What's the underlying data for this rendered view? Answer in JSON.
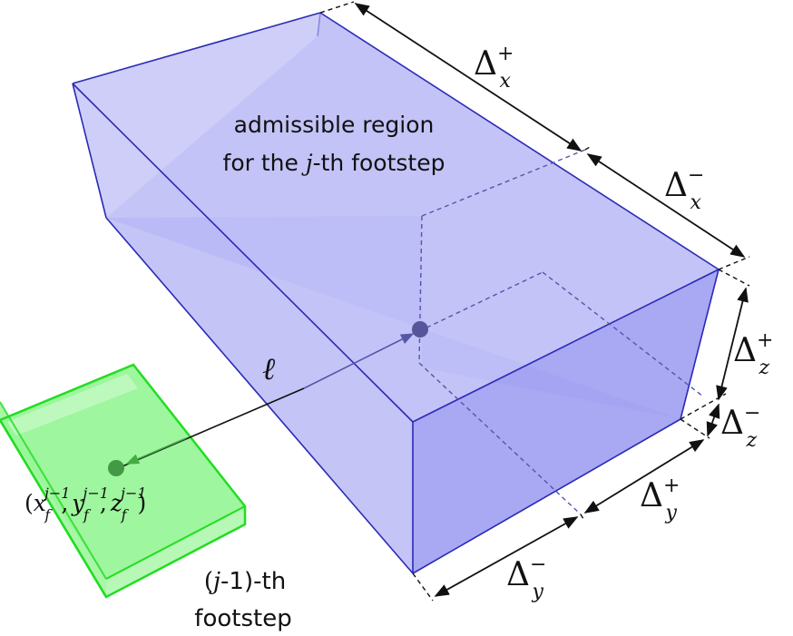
{
  "region": {
    "line1": "admissible region",
    "line2_pre": "for the ",
    "line2_var": "j",
    "line2_post": "-th footstep"
  },
  "footstep": {
    "line1_open": "(",
    "line1_var": "j",
    "line1_rest": "-1)-th",
    "line2": "footstep"
  },
  "vector_label": "ℓ",
  "point_label": {
    "open": "(",
    "x": "x",
    "y": "y",
    "z": "z",
    "sub": "f",
    "sup": "j−1",
    "comma": ",",
    "close": ")"
  },
  "dims": {
    "base": "Δ",
    "x_plus_sub": "x",
    "x_plus_sup": "+",
    "x_minus_sub": "x",
    "x_minus_sup": "−",
    "z_plus_sub": "z",
    "z_plus_sup": "+",
    "z_minus_sub": "z",
    "z_minus_sup": "−",
    "y_plus_sub": "y",
    "y_plus_sup": "+",
    "y_minus_sub": "y",
    "y_minus_sup": "−"
  },
  "colors": {
    "box_edge": "#2a2ab8",
    "box_fill_top": "#b9b9f6",
    "box_fill_front": "#9e9ef2",
    "box_fill_side": "#a8a8f3",
    "foot_edge": "#22dd22",
    "foot_fill": "#99f599",
    "center_dot": "#555599",
    "foot_dot": "#449944"
  }
}
